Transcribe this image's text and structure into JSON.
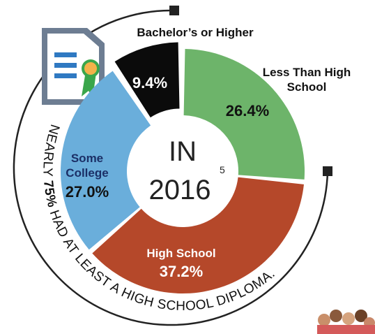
{
  "chart_data": {
    "type": "donut",
    "categories": [
      "Less Than High School",
      "High School",
      "Some College",
      "Bachelor’s or Higher"
    ],
    "values": [
      26.4,
      37.2,
      27.0,
      9.4
    ],
    "value_labels": [
      "26.4%",
      "37.2%",
      "27.0%",
      "9.4%"
    ],
    "colors": [
      "#6db46a",
      "#b5482a",
      "#6aaedb",
      "#0b0b0b"
    ],
    "center_label": "IN",
    "center_year": "2016",
    "footnote": "5",
    "annotation": [
      "NEARLY ",
      "75%",
      " HAD AT LEAST A HIGH SCHOOL DIPLOMA."
    ]
  }
}
